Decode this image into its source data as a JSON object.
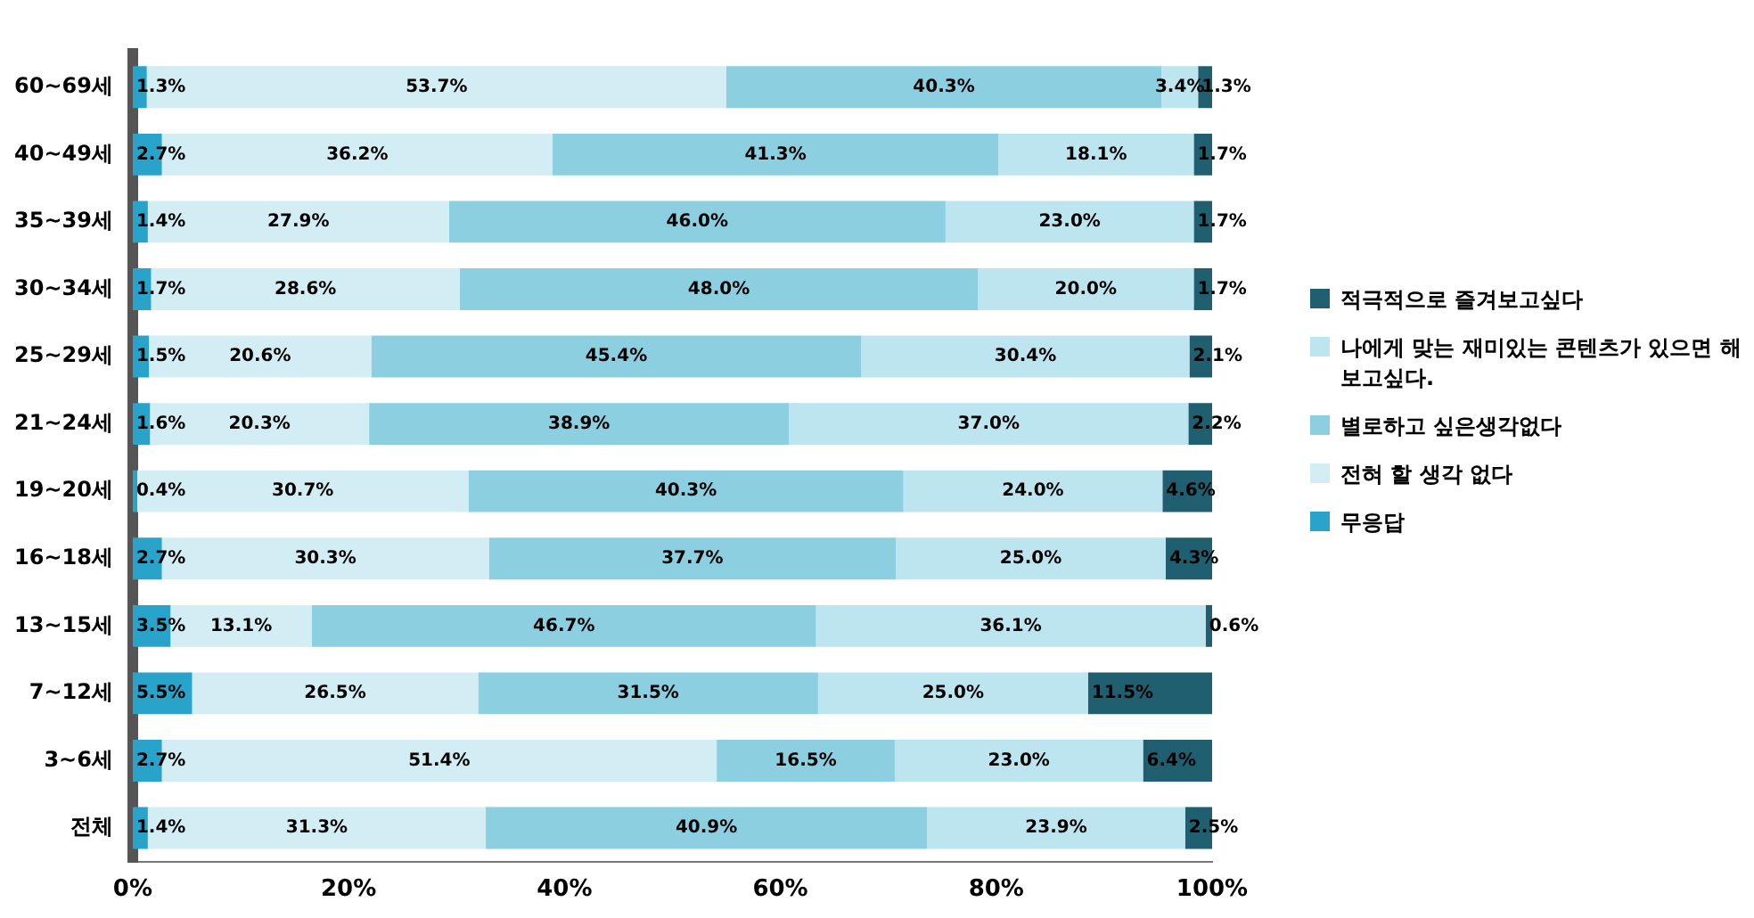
{
  "chart_data": {
    "type": "bar",
    "orientation": "horizontal",
    "stacked": true,
    "legend": "right",
    "grid": false,
    "categories": [
      "60~69세",
      "40~49세",
      "35~39세",
      "30~34세",
      "25~29세",
      "21~24세",
      "19~20세",
      "16~18세",
      "13~15세",
      "7~12세",
      "3~6세",
      "전체"
    ],
    "xlim": [
      0,
      100
    ],
    "xticks": [
      {
        "value": 0,
        "label": "0%"
      },
      {
        "value": 20,
        "label": "20%"
      },
      {
        "value": 40,
        "label": "40%"
      },
      {
        "value": 60,
        "label": "60%"
      },
      {
        "value": 80,
        "label": "80%"
      },
      {
        "value": 100,
        "label": "100%"
      }
    ],
    "series": [
      {
        "name": "무응답",
        "color": "#29a3c9",
        "values": [
          1.3,
          2.7,
          1.4,
          1.7,
          1.5,
          1.6,
          0.4,
          2.7,
          3.5,
          5.5,
          2.7,
          1.4
        ],
        "value_labels": [
          "1.3%",
          "2.7%",
          "1.4%",
          "1.7%",
          "1.5%",
          "1.6%",
          "0.4%",
          "2.7%",
          "3.5%",
          "5.5%",
          "2.7%",
          "1.4%"
        ]
      },
      {
        "name": "전혀 할 생각 없다",
        "color": "#d3edf5",
        "values": [
          53.7,
          36.2,
          27.9,
          28.6,
          20.6,
          20.3,
          30.7,
          30.3,
          13.1,
          26.5,
          51.4,
          31.3
        ],
        "value_labels": [
          "53.7%",
          "36.2%",
          "27.9%",
          "28.6%",
          "20.6%",
          "20.3%",
          "30.7%",
          "30.3%",
          "13.1%",
          "26.5%",
          "51.4%",
          "31.3%"
        ]
      },
      {
        "name": "별로하고 싶은생각없다",
        "color": "#8ccfe0",
        "values": [
          40.3,
          41.3,
          46.0,
          48.0,
          45.4,
          38.9,
          40.3,
          37.7,
          46.7,
          31.5,
          16.5,
          40.9
        ],
        "value_labels": [
          "40.3%",
          "41.3%",
          "46.0%",
          "48.0%",
          "45.4%",
          "38.9%",
          "40.3%",
          "37.7%",
          "46.7%",
          "31.5%",
          "16.5%",
          "40.9%"
        ]
      },
      {
        "name": "나에게 맞는 재미있는 콘텐츠가 있으면 해보고싶다.",
        "color": "#bde5ef",
        "values": [
          3.4,
          18.1,
          23.0,
          20.0,
          30.4,
          37.0,
          24.0,
          25.0,
          36.1,
          25.0,
          23.0,
          23.9
        ],
        "value_labels": [
          "3.4%",
          "18.1%",
          "23.0%",
          "20.0%",
          "30.4%",
          "37.0%",
          "24.0%",
          "25.0%",
          "36.1%",
          "25.0%",
          "23.0%",
          "23.9%"
        ]
      },
      {
        "name": "적극적으로 즐겨보고싶다",
        "color": "#1f5f70",
        "values": [
          1.3,
          1.7,
          1.7,
          1.7,
          2.1,
          2.2,
          4.6,
          4.3,
          0.6,
          11.5,
          6.4,
          2.5
        ],
        "value_labels": [
          "1.3%",
          "1.7%",
          "1.7%",
          "1.7%",
          "2.1%",
          "2.2%",
          "4.6%",
          "4.3%",
          "0.6%",
          "11.5%",
          "6.4%",
          "2.5%"
        ]
      }
    ]
  }
}
